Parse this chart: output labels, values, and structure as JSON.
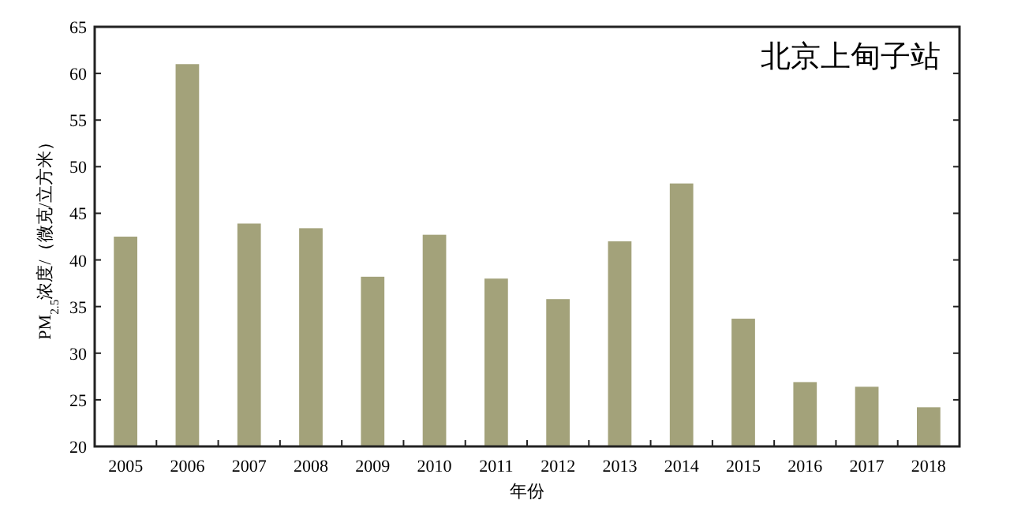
{
  "chart_data": {
    "type": "bar",
    "categories": [
      "2005",
      "2006",
      "2007",
      "2008",
      "2009",
      "2010",
      "2011",
      "2012",
      "2013",
      "2014",
      "2015",
      "2016",
      "2017",
      "2018"
    ],
    "values": [
      42.5,
      61,
      43.9,
      43.4,
      38.2,
      42.7,
      38.0,
      35.8,
      42.0,
      48.2,
      33.7,
      26.9,
      26.4,
      24.2
    ],
    "color": "#a3a27a",
    "xlabel": "年份",
    "ylabel": "PM$_{2.5}$浓度/（微克/立方米）",
    "annotations": [
      "北京上甸子站"
    ],
    "ylim": [
      20,
      65
    ],
    "yticks": [
      20,
      25,
      30,
      35,
      40,
      45,
      50,
      55,
      60,
      65
    ],
    "grid": false
  }
}
